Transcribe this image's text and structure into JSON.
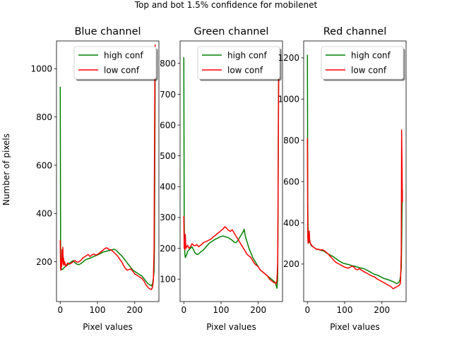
{
  "figure": {
    "suptitle": "Top and bot 1.5% confidence for mobilenet",
    "shared_ylabel": "Number of pixels"
  },
  "colors": {
    "high_conf": "#008000",
    "low_conf": "#ff0000",
    "axes": "#000000"
  },
  "chart_data": [
    {
      "type": "line",
      "title": "Blue channel",
      "xlabel": "Pixel values",
      "ylabel": "Number of pixels",
      "xlim": [
        -10,
        265
      ],
      "ylim": [
        35,
        1115
      ],
      "xticks": [
        0,
        100,
        200
      ],
      "yticks": [
        200,
        400,
        600,
        800,
        1000
      ],
      "legend_position": "upper right",
      "grid": false,
      "series": [
        {
          "name": "high conf",
          "color": "#008000",
          "x": [
            0,
            1,
            2,
            4,
            6,
            8,
            10,
            14,
            18,
            22,
            26,
            30,
            35,
            40,
            45,
            50,
            55,
            60,
            65,
            70,
            75,
            80,
            85,
            90,
            95,
            100,
            105,
            110,
            115,
            120,
            125,
            130,
            135,
            140,
            145,
            150,
            155,
            160,
            165,
            170,
            175,
            180,
            185,
            190,
            195,
            200,
            205,
            210,
            215,
            220,
            225,
            230,
            235,
            240,
            245,
            248,
            250,
            252,
            253,
            254,
            255
          ],
          "y": [
            925,
            290,
            165,
            170,
            168,
            172,
            175,
            180,
            185,
            190,
            195,
            200,
            205,
            195,
            190,
            188,
            192,
            198,
            205,
            210,
            212,
            215,
            218,
            222,
            225,
            228,
            232,
            236,
            240,
            242,
            244,
            246,
            248,
            250,
            252,
            248,
            240,
            232,
            225,
            215,
            205,
            195,
            185,
            175,
            165,
            160,
            155,
            150,
            145,
            140,
            130,
            120,
            110,
            105,
            100,
            110,
            130,
            160,
            250,
            600,
            1000
          ]
        },
        {
          "name": "low conf",
          "color": "#ff0000",
          "x": [
            0,
            1,
            2,
            3,
            4,
            5,
            6,
            7,
            8,
            9,
            10,
            12,
            15,
            18,
            20,
            25,
            30,
            35,
            40,
            45,
            50,
            55,
            60,
            65,
            70,
            75,
            80,
            85,
            90,
            95,
            100,
            105,
            110,
            115,
            120,
            125,
            130,
            135,
            140,
            145,
            150,
            155,
            160,
            165,
            170,
            175,
            180,
            185,
            190,
            195,
            200,
            205,
            210,
            215,
            220,
            225,
            230,
            235,
            240,
            245,
            248,
            250,
            252,
            253,
            254,
            255
          ],
          "y": [
            290,
            170,
            165,
            210,
            180,
            250,
            200,
            260,
            190,
            215,
            185,
            200,
            180,
            190,
            195,
            190,
            195,
            200,
            205,
            198,
            200,
            205,
            215,
            220,
            225,
            230,
            222,
            228,
            232,
            228,
            230,
            236,
            242,
            248,
            255,
            258,
            252,
            250,
            245,
            238,
            230,
            222,
            210,
            200,
            185,
            172,
            165,
            168,
            170,
            160,
            150,
            145,
            140,
            135,
            130,
            120,
            105,
            95,
            88,
            85,
            95,
            120,
            250,
            600,
            950,
            1100
          ]
        }
      ]
    },
    {
      "type": "line",
      "title": "Green channel",
      "xlabel": "Pixel values",
      "ylabel": "",
      "xlim": [
        -10,
        265
      ],
      "ylim": [
        27,
        873
      ],
      "xticks": [
        0,
        100,
        200
      ],
      "yticks": [
        100,
        200,
        300,
        400,
        500,
        600,
        700,
        800
      ],
      "legend_position": "upper right",
      "grid": false,
      "series": [
        {
          "name": "high conf",
          "color": "#008000",
          "x": [
            0,
            1,
            2,
            3,
            4,
            6,
            8,
            10,
            14,
            18,
            22,
            26,
            30,
            35,
            40,
            45,
            50,
            55,
            60,
            65,
            70,
            75,
            80,
            85,
            90,
            95,
            100,
            105,
            110,
            115,
            120,
            125,
            130,
            135,
            140,
            145,
            150,
            155,
            160,
            162,
            165,
            170,
            175,
            180,
            185,
            190,
            195,
            200,
            205,
            210,
            215,
            220,
            225,
            230,
            235,
            240,
            245,
            248,
            250,
            252,
            253,
            254,
            255
          ],
          "y": [
            820,
            300,
            200,
            180,
            170,
            175,
            180,
            190,
            195,
            200,
            205,
            195,
            185,
            180,
            182,
            188,
            192,
            198,
            205,
            212,
            218,
            222,
            226,
            230,
            232,
            236,
            238,
            240,
            238,
            236,
            234,
            230,
            226,
            220,
            218,
            225,
            235,
            245,
            255,
            262,
            240,
            220,
            200,
            185,
            170,
            160,
            150,
            140,
            130,
            125,
            120,
            115,
            110,
            105,
            100,
            95,
            90,
            80,
            70,
            100,
            300,
            650,
            820
          ]
        },
        {
          "name": "low conf",
          "color": "#ff0000",
          "x": [
            0,
            1,
            2,
            3,
            4,
            5,
            6,
            8,
            10,
            14,
            18,
            22,
            26,
            30,
            35,
            40,
            45,
            50,
            55,
            60,
            65,
            70,
            75,
            80,
            85,
            90,
            95,
            100,
            105,
            110,
            115,
            120,
            125,
            130,
            135,
            140,
            145,
            150,
            155,
            160,
            165,
            170,
            175,
            180,
            185,
            190,
            195,
            200,
            205,
            210,
            215,
            220,
            225,
            230,
            235,
            240,
            245,
            248,
            250,
            252,
            253,
            254,
            255
          ],
          "y": [
            305,
            200,
            230,
            195,
            245,
            210,
            200,
            205,
            210,
            200,
            205,
            215,
            210,
            208,
            212,
            205,
            210,
            215,
            220,
            222,
            225,
            228,
            232,
            238,
            242,
            248,
            252,
            258,
            262,
            270,
            265,
            258,
            255,
            260,
            250,
            240,
            230,
            220,
            210,
            200,
            190,
            180,
            175,
            170,
            160,
            150,
            145,
            140,
            130,
            125,
            120,
            115,
            110,
            100,
            95,
            90,
            88,
            85,
            95,
            150,
            350,
            600,
            800
          ]
        }
      ]
    },
    {
      "type": "line",
      "title": "Red channel",
      "xlabel": "Pixel values",
      "ylabel": "",
      "xlim": [
        -10,
        265
      ],
      "ylim": [
        18,
        1282
      ],
      "xticks": [
        0,
        100,
        200
      ],
      "yticks": [
        200,
        400,
        600,
        800,
        1000,
        1200
      ],
      "legend_position": "upper right",
      "grid": false,
      "series": [
        {
          "name": "high conf",
          "color": "#008000",
          "x": [
            0,
            1,
            2,
            4,
            6,
            8,
            10,
            14,
            18,
            22,
            26,
            30,
            35,
            40,
            45,
            50,
            55,
            60,
            65,
            70,
            75,
            80,
            85,
            90,
            95,
            100,
            105,
            110,
            115,
            120,
            125,
            130,
            135,
            140,
            145,
            150,
            155,
            160,
            165,
            170,
            175,
            180,
            185,
            190,
            195,
            200,
            205,
            210,
            215,
            220,
            225,
            230,
            235,
            240,
            245,
            248,
            250,
            252,
            253,
            254,
            255
          ],
          "y": [
            1215,
            500,
            320,
            305,
            315,
            300,
            290,
            285,
            280,
            275,
            272,
            270,
            268,
            265,
            262,
            255,
            250,
            245,
            240,
            235,
            228,
            222,
            215,
            210,
            205,
            202,
            200,
            198,
            195,
            192,
            190,
            188,
            185,
            182,
            180,
            178,
            175,
            170,
            165,
            160,
            155,
            150,
            148,
            145,
            140,
            135,
            130,
            128,
            125,
            122,
            118,
            115,
            110,
            105,
            110,
            120,
            140,
            180,
            280,
            450,
            560
          ]
        },
        {
          "name": "low conf",
          "color": "#ff0000",
          "x": [
            0,
            1,
            2,
            3,
            4,
            5,
            6,
            8,
            10,
            14,
            18,
            22,
            26,
            30,
            35,
            40,
            45,
            50,
            55,
            60,
            65,
            70,
            75,
            80,
            85,
            90,
            95,
            100,
            105,
            110,
            115,
            120,
            125,
            130,
            135,
            140,
            145,
            150,
            155,
            160,
            165,
            170,
            175,
            180,
            185,
            190,
            195,
            200,
            205,
            210,
            215,
            220,
            225,
            230,
            235,
            240,
            245,
            248,
            250,
            252,
            253,
            254,
            255
          ],
          "y": [
            810,
            330,
            300,
            340,
            310,
            360,
            320,
            300,
            295,
            285,
            280,
            275,
            270,
            272,
            268,
            270,
            265,
            258,
            250,
            240,
            230,
            220,
            210,
            205,
            200,
            195,
            190,
            185,
            182,
            180,
            185,
            190,
            185,
            175,
            172,
            178,
            170,
            165,
            160,
            155,
            150,
            145,
            140,
            138,
            130,
            125,
            120,
            115,
            110,
            105,
            100,
            95,
            90,
            80,
            85,
            90,
            95,
            100,
            110,
            250,
            850,
            700,
            500
          ]
        }
      ]
    }
  ]
}
